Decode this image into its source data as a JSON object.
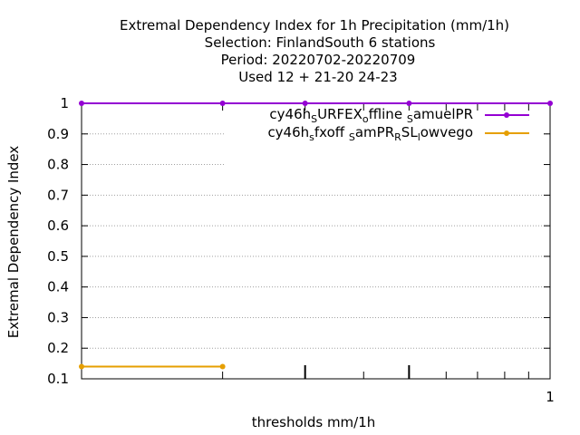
{
  "title_lines": [
    "Extremal Dependency Index  for 1h Precipitation (mm/1h)",
    "Selection: FinlandSouth      6 stations",
    "Period: 20220702-20220709",
    "Used  12 + 21-20 24-23"
  ],
  "chart_data": {
    "type": "line",
    "title": "Extremal Dependency Index  for 1h Precipitation (mm/1h)",
    "xlabel": "thresholds mm/1h",
    "ylabel": "Extremal Dependency Index",
    "x_scale": "log",
    "x_tick_labels": [
      "1"
    ],
    "y_ticks": [
      "0.1",
      "0.2",
      "0.3",
      "0.4",
      "0.5",
      "0.6",
      "0.7",
      "0.8",
      "0.9",
      "1"
    ],
    "ylim": [
      0.1,
      1
    ],
    "grid": true,
    "legend_position": "top-right",
    "series": [
      {
        "name": "cy46h_SURFEX_offline_SamuelPR",
        "color": "#9400d3",
        "x": [
          0.1,
          0.2,
          0.3,
          0.5,
          1
        ],
        "y": [
          1,
          1,
          1,
          1,
          1
        ]
      },
      {
        "name": "cy46h_sfxoff_SamPR_RSL_lowvego",
        "color": "#e69f00",
        "x": [
          0.1,
          0.2
        ],
        "y": [
          0.14,
          0.14
        ]
      }
    ]
  }
}
